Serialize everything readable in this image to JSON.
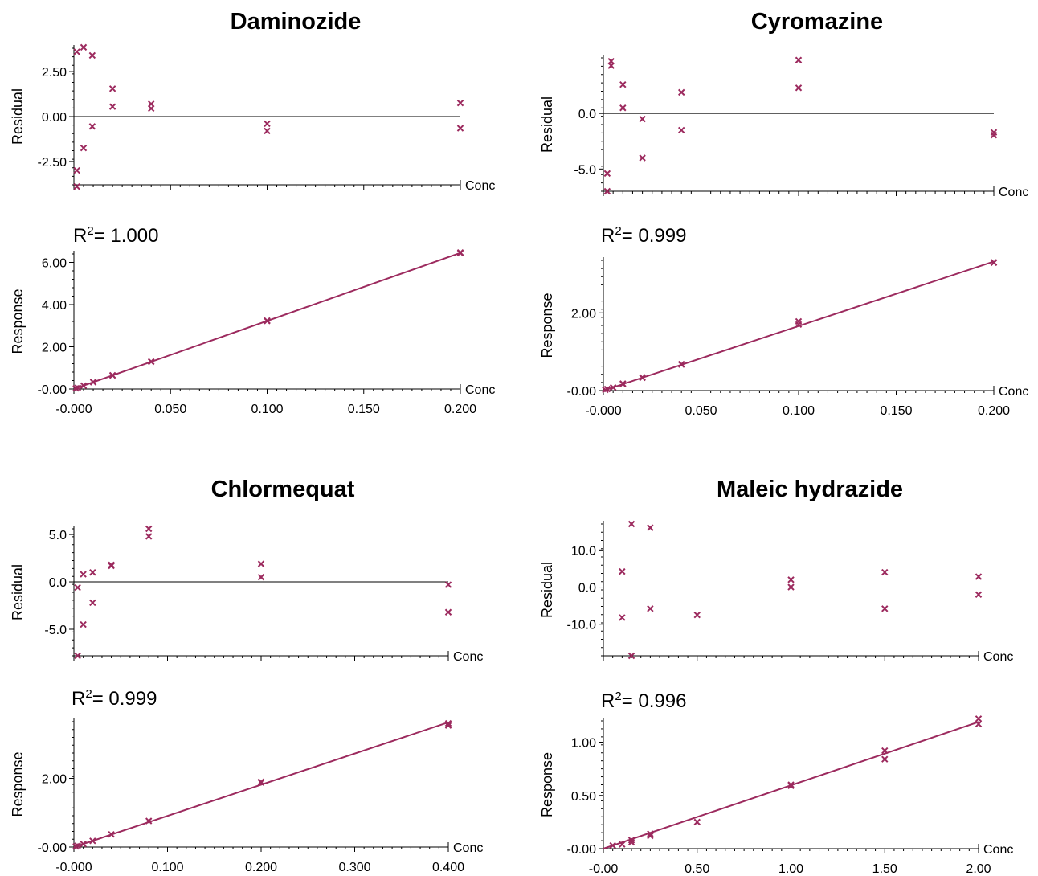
{
  "chart_data": [
    {
      "type": "scatter",
      "title": "Daminozide",
      "r2_label": "R",
      "r2_sup": "2",
      "r2_value": "= 1.000",
      "residual": {
        "ylabel": "Residual",
        "xlabel": "Conc",
        "ylim": [
          -3.8,
          3.8
        ],
        "xlim": [
          0,
          0.2
        ],
        "yticks": [
          2.5,
          0,
          -2.5
        ],
        "ytick_labels": [
          "2.50",
          "0.00",
          "-2.50"
        ],
        "zero_line": true,
        "points": [
          [
            0.0015,
            3.6
          ],
          [
            0.005,
            3.85
          ],
          [
            0.0095,
            3.4
          ],
          [
            0.0095,
            -0.55
          ],
          [
            0.005,
            -1.75
          ],
          [
            0.0015,
            -3.0
          ],
          [
            0.0015,
            -3.9
          ],
          [
            0.02,
            1.55
          ],
          [
            0.02,
            0.55
          ],
          [
            0.04,
            0.7
          ],
          [
            0.04,
            0.45
          ],
          [
            0.1,
            -0.4
          ],
          [
            0.1,
            -0.8
          ],
          [
            0.2,
            0.75
          ],
          [
            0.2,
            -0.65
          ]
        ]
      },
      "response": {
        "ylabel": "Response",
        "xlabel": "Conc",
        "ylim": [
          0,
          6.4
        ],
        "xlim": [
          0,
          0.2
        ],
        "yticks": [
          6,
          4,
          2,
          0
        ],
        "ytick_labels": [
          "6.00",
          "4.00",
          "2.00",
          "-0.00"
        ],
        "xticks": [
          0,
          0.05,
          0.1,
          0.15,
          0.2
        ],
        "xtick_labels": [
          "-0.000",
          "0.050",
          "0.100",
          "0.150",
          "0.200"
        ],
        "fit": [
          [
            0,
            0
          ],
          [
            0.2,
            6.45
          ]
        ],
        "points": [
          [
            0.001,
            0.03
          ],
          [
            0.002,
            0.06
          ],
          [
            0.005,
            0.16
          ],
          [
            0.01,
            0.32
          ],
          [
            0.01,
            0.33
          ],
          [
            0.02,
            0.64
          ],
          [
            0.02,
            0.65
          ],
          [
            0.04,
            1.29
          ],
          [
            0.04,
            1.3
          ],
          [
            0.1,
            3.22
          ],
          [
            0.1,
            3.24
          ],
          [
            0.2,
            6.44
          ],
          [
            0.2,
            6.47
          ]
        ]
      }
    },
    {
      "type": "scatter",
      "title": "Cyromazine",
      "r2_label": "R",
      "r2_sup": "2",
      "r2_value": "= 0.999",
      "residual": {
        "ylabel": "Residual",
        "xlabel": "Conc",
        "ylim": [
          -7.0,
          5.0
        ],
        "xlim": [
          0,
          0.2
        ],
        "yticks": [
          0,
          -5
        ],
        "ytick_labels": [
          "0.0",
          "-5.0"
        ],
        "zero_line": true,
        "points": [
          [
            0.004,
            4.7
          ],
          [
            0.004,
            4.3
          ],
          [
            0.01,
            2.6
          ],
          [
            0.01,
            0.5
          ],
          [
            0.002,
            -5.4
          ],
          [
            0.002,
            -7.0
          ],
          [
            0.02,
            -0.5
          ],
          [
            0.02,
            -4.0
          ],
          [
            0.04,
            1.9
          ],
          [
            0.04,
            -1.5
          ],
          [
            0.1,
            4.8
          ],
          [
            0.1,
            2.3
          ],
          [
            0.2,
            -1.7
          ],
          [
            0.2,
            -1.95
          ]
        ]
      },
      "response": {
        "ylabel": "Response",
        "xlabel": "Conc",
        "ylim": [
          0,
          3.35
        ],
        "xlim": [
          0,
          0.2
        ],
        "yticks": [
          2,
          0
        ],
        "ytick_labels": [
          "2.00",
          "-0.00"
        ],
        "xticks": [
          0,
          0.05,
          0.1,
          0.15,
          0.2
        ],
        "xtick_labels": [
          "-0.000",
          "0.050",
          "0.100",
          "0.150",
          "0.200"
        ],
        "fit": [
          [
            0,
            0
          ],
          [
            0.2,
            3.32
          ]
        ],
        "points": [
          [
            0.001,
            0.02
          ],
          [
            0.002,
            0.04
          ],
          [
            0.005,
            0.08
          ],
          [
            0.01,
            0.17
          ],
          [
            0.01,
            0.18
          ],
          [
            0.02,
            0.33
          ],
          [
            0.02,
            0.34
          ],
          [
            0.04,
            0.67
          ],
          [
            0.04,
            0.68
          ],
          [
            0.1,
            1.7
          ],
          [
            0.1,
            1.78
          ],
          [
            0.2,
            3.29
          ],
          [
            0.2,
            3.3
          ]
        ]
      }
    },
    {
      "type": "scatter",
      "title": "Chlormequat",
      "r2_label": "R",
      "r2_sup": "2",
      "r2_value": "= 0.999",
      "residual": {
        "ylabel": "Residual",
        "xlabel": "Conc",
        "ylim": [
          -7.8,
          5.6
        ],
        "xlim": [
          0,
          0.4
        ],
        "yticks": [
          5,
          0,
          -5
        ],
        "ytick_labels": [
          "5.0",
          "0.0",
          "-5.0"
        ],
        "zero_line": true,
        "points": [
          [
            0.004,
            -0.6
          ],
          [
            0.004,
            -7.8
          ],
          [
            0.01,
            0.8
          ],
          [
            0.01,
            -4.5
          ],
          [
            0.02,
            1.0
          ],
          [
            0.02,
            -2.2
          ],
          [
            0.04,
            1.8
          ],
          [
            0.04,
            1.7
          ],
          [
            0.08,
            5.6
          ],
          [
            0.08,
            4.8
          ],
          [
            0.2,
            1.9
          ],
          [
            0.2,
            0.5
          ],
          [
            0.4,
            -0.3
          ],
          [
            0.4,
            -3.2
          ]
        ]
      },
      "response": {
        "ylabel": "Response",
        "xlabel": "Conc",
        "ylim": [
          0,
          3.65
        ],
        "xlim": [
          0,
          0.4
        ],
        "yticks": [
          2,
          0
        ],
        "ytick_labels": [
          "2.00",
          "-0.00"
        ],
        "xticks": [
          0,
          0.1,
          0.2,
          0.3,
          0.4
        ],
        "xtick_labels": [
          "-0.000",
          "0.100",
          "0.200",
          "0.300",
          "0.400"
        ],
        "fit": [
          [
            0,
            0
          ],
          [
            0.4,
            3.63
          ]
        ],
        "points": [
          [
            0.002,
            0.02
          ],
          [
            0.004,
            0.04
          ],
          [
            0.01,
            0.09
          ],
          [
            0.02,
            0.18
          ],
          [
            0.04,
            0.37
          ],
          [
            0.08,
            0.76
          ],
          [
            0.2,
            1.88
          ],
          [
            0.2,
            1.9
          ],
          [
            0.4,
            3.6
          ],
          [
            0.4,
            3.54
          ]
        ]
      }
    },
    {
      "type": "scatter",
      "title": "Maleic hydrazide",
      "r2_label": "R",
      "r2_sup": "2",
      "r2_value": "= 0.996",
      "residual": {
        "ylabel": "Residual",
        "xlabel": "Conc",
        "ylim": [
          -18.5,
          17.0
        ],
        "xlim": [
          0,
          2.0
        ],
        "yticks": [
          10,
          0,
          -10
        ],
        "ytick_labels": [
          "10.0",
          "0.0",
          "-10.0"
        ],
        "zero_line": true,
        "points": [
          [
            0.1,
            4.2
          ],
          [
            0.1,
            -8.2
          ],
          [
            0.15,
            17.0
          ],
          [
            0.15,
            -18.5
          ],
          [
            0.25,
            16.0
          ],
          [
            0.25,
            -5.8
          ],
          [
            0.5,
            -7.5
          ],
          [
            1.0,
            2.0
          ],
          [
            1.0,
            0.0
          ],
          [
            1.5,
            4.0
          ],
          [
            1.5,
            -5.8
          ],
          [
            2.0,
            2.8
          ],
          [
            2.0,
            -2.0
          ]
        ]
      },
      "response": {
        "ylabel": "Response",
        "xlabel": "Conc",
        "ylim": [
          0,
          1.2
        ],
        "xlim": [
          0,
          2.0
        ],
        "yticks": [
          1.0,
          0.5,
          0
        ],
        "ytick_labels": [
          "1.00",
          "0.50",
          "-0.00"
        ],
        "xticks": [
          0,
          0.5,
          1.0,
          1.5,
          2.0
        ],
        "xtick_labels": [
          "-0.00",
          "0.50",
          "1.00",
          "1.50",
          "2.00"
        ],
        "fit": [
          [
            0,
            0
          ],
          [
            2.0,
            1.19
          ]
        ],
        "points": [
          [
            0.05,
            0.03
          ],
          [
            0.1,
            0.04
          ],
          [
            0.15,
            0.06
          ],
          [
            0.15,
            0.08
          ],
          [
            0.25,
            0.12
          ],
          [
            0.25,
            0.14
          ],
          [
            0.5,
            0.25
          ],
          [
            1.0,
            0.59
          ],
          [
            1.0,
            0.6
          ],
          [
            1.5,
            0.92
          ],
          [
            1.5,
            0.84
          ],
          [
            2.0,
            1.22
          ],
          [
            2.0,
            1.17
          ]
        ]
      }
    }
  ]
}
